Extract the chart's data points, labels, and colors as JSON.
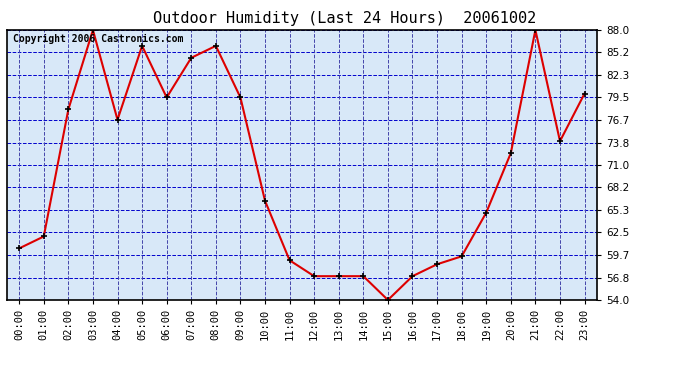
{
  "title": "Outdoor Humidity (Last 24 Hours)  20061002",
  "copyright": "Copyright 2006 Castronics.com",
  "x_labels": [
    "00:00",
    "01:00",
    "02:00",
    "03:00",
    "04:00",
    "05:00",
    "06:00",
    "07:00",
    "08:00",
    "09:00",
    "10:00",
    "11:00",
    "12:00",
    "13:00",
    "14:00",
    "15:00",
    "16:00",
    "17:00",
    "18:00",
    "19:00",
    "20:00",
    "21:00",
    "22:00",
    "23:00"
  ],
  "y_values": [
    60.5,
    62.0,
    78.0,
    88.0,
    76.7,
    86.0,
    79.5,
    84.5,
    86.0,
    79.5,
    66.5,
    59.0,
    57.0,
    57.0,
    57.0,
    54.0,
    57.0,
    58.5,
    59.5,
    65.0,
    72.5,
    88.0,
    74.0,
    80.0
  ],
  "y_ticks": [
    54.0,
    56.8,
    59.7,
    62.5,
    65.3,
    68.2,
    71.0,
    73.8,
    76.7,
    79.5,
    82.3,
    85.2,
    88.0
  ],
  "y_min": 54.0,
  "y_max": 88.0,
  "line_color": "#dd0000",
  "marker_color": "#000000",
  "bg_color": "#ffffff",
  "plot_bg_color": "#d8e8f8",
  "grid_color_h": "#0000cc",
  "grid_color_v": "#4444aa",
  "title_color": "#000000",
  "copyright_color": "#000000",
  "title_fontsize": 11,
  "copyright_fontsize": 7,
  "tick_fontsize": 7.5,
  "border_color": "#000000"
}
